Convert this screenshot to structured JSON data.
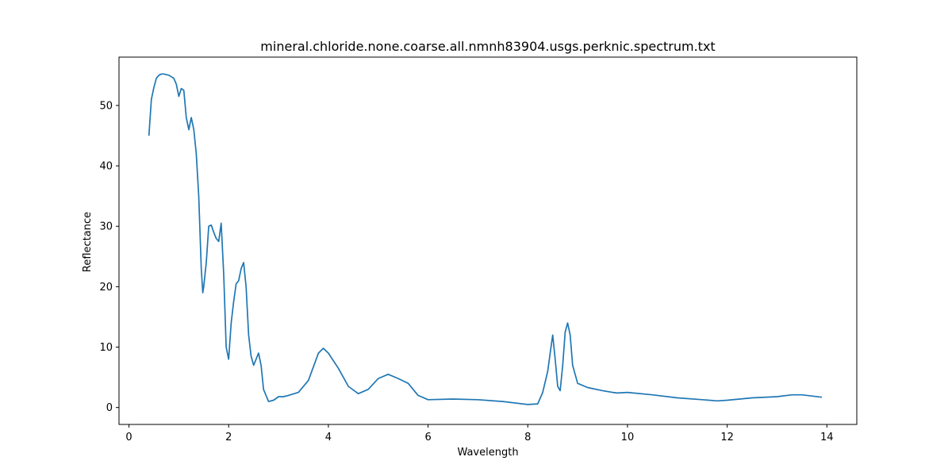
{
  "chart_data": {
    "type": "line",
    "title": "mineral.chloride.none.coarse.all.nmnh83904.usgs.perknic.spectrum.txt",
    "xlabel": "Wavelength",
    "ylabel": "Reflectance",
    "xlim": [
      -0.2,
      14.6
    ],
    "ylim": [
      -2.8,
      58.0
    ],
    "xticks": [
      0,
      2,
      4,
      6,
      8,
      10,
      12,
      14
    ],
    "yticks": [
      0,
      10,
      20,
      30,
      40,
      50
    ],
    "grid": false,
    "line_color": "#1f77b4",
    "series": [
      {
        "x": [
          0.4,
          0.45,
          0.5,
          0.55,
          0.6,
          0.65,
          0.7,
          0.8,
          0.9,
          0.95,
          1.0,
          1.05,
          1.1,
          1.15,
          1.2,
          1.25,
          1.3,
          1.35,
          1.4,
          1.45,
          1.48,
          1.5,
          1.55,
          1.6,
          1.65,
          1.7,
          1.75,
          1.8,
          1.85,
          1.9,
          1.95,
          2.0,
          2.05,
          2.1,
          2.15,
          2.2,
          2.25,
          2.3,
          2.35,
          2.4,
          2.45,
          2.5,
          2.55,
          2.6,
          2.65,
          2.7,
          2.8,
          2.9,
          3.0,
          3.1,
          3.2,
          3.4,
          3.6,
          3.8,
          3.9,
          4.0,
          4.2,
          4.4,
          4.6,
          4.8,
          5.0,
          5.2,
          5.4,
          5.6,
          5.8,
          6.0,
          6.5,
          7.0,
          7.5,
          8.0,
          8.2,
          8.3,
          8.4,
          8.45,
          8.5,
          8.55,
          8.6,
          8.65,
          8.7,
          8.75,
          8.8,
          8.85,
          8.9,
          9.0,
          9.2,
          9.5,
          9.7,
          9.8,
          10.0,
          10.5,
          11.0,
          11.5,
          11.8,
          12.0,
          12.5,
          13.0,
          13.3,
          13.5,
          13.7,
          13.9
        ],
        "y": [
          45.0,
          51.0,
          53.0,
          54.5,
          55.0,
          55.2,
          55.2,
          55.0,
          54.5,
          53.5,
          51.5,
          52.8,
          52.5,
          48.0,
          46.0,
          48.0,
          46.0,
          42.0,
          35.0,
          23.0,
          19.0,
          20.0,
          24.0,
          30.0,
          30.2,
          29.0,
          28.0,
          27.5,
          30.5,
          22.0,
          10.0,
          8.0,
          14.0,
          17.5,
          20.5,
          21.0,
          23.0,
          24.0,
          20.0,
          12.0,
          8.5,
          7.0,
          8.0,
          9.0,
          7.0,
          3.0,
          1.0,
          1.2,
          1.8,
          1.8,
          2.0,
          2.5,
          4.5,
          9.0,
          9.8,
          9.0,
          6.5,
          3.5,
          2.3,
          3.0,
          4.8,
          5.5,
          4.8,
          4.0,
          2.0,
          1.3,
          1.4,
          1.3,
          1.0,
          0.5,
          0.6,
          2.5,
          6.0,
          9.0,
          12.0,
          8.0,
          3.5,
          2.8,
          7.0,
          12.5,
          14.0,
          12.0,
          7.0,
          4.0,
          3.3,
          2.8,
          2.5,
          2.4,
          2.5,
          2.1,
          1.6,
          1.3,
          1.1,
          1.2,
          1.6,
          1.8,
          2.1,
          2.1,
          1.9,
          1.7
        ]
      }
    ]
  }
}
